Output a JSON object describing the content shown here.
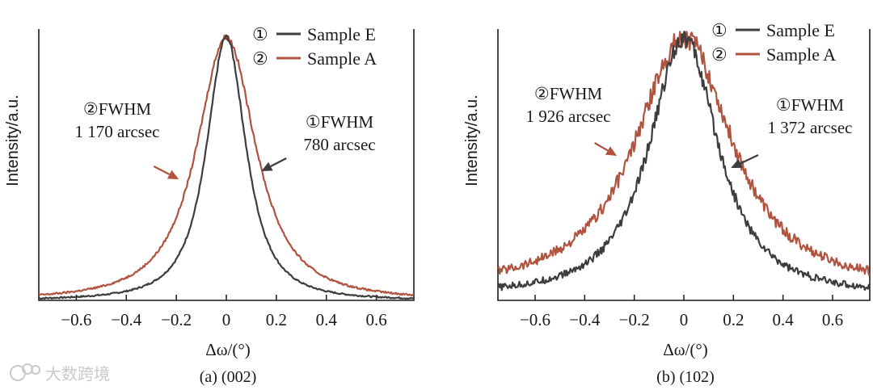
{
  "colors": {
    "sample_e": "#3d3d3f",
    "sample_a": "#b0533f",
    "axis": "#1a1a1a",
    "watermark": "#c9c9c9"
  },
  "watermark": {
    "icon": "cloud-logo-icon",
    "text": "大数跨境"
  },
  "chart_data": [
    {
      "type": "line",
      "caption": "(a) (002)",
      "xlabel": "Δω/(°)",
      "ylabel": "Intensity/a.u.",
      "xlim": [
        -0.75,
        0.75
      ],
      "ylim": [
        0,
        1.03
      ],
      "xticks": [
        -0.6,
        -0.4,
        -0.2,
        0,
        0.2,
        0.4,
        0.6
      ],
      "xtick_labels": [
        "−0.6",
        "−0.4",
        "−0.2",
        "0",
        "0.2",
        "0.4",
        "0.6"
      ],
      "legend": [
        {
          "marker": "①",
          "label": "Sample E",
          "series": 0
        },
        {
          "marker": "②",
          "label": "Sample A",
          "series": 1
        }
      ],
      "legend_position": "top-right",
      "series": [
        {
          "name": "Sample E",
          "peak": 0.0,
          "fwhm_deg": 0.217,
          "background": 0.0,
          "noise": 0.012
        },
        {
          "name": "Sample A",
          "peak": 0.0,
          "fwhm_deg": 0.325,
          "background": 0.0,
          "noise": 0.014
        }
      ],
      "annotations": [
        {
          "lines": [
            "②FWHM",
            "1 170 arcsec"
          ],
          "series": 1,
          "arrow_from_x": -0.29,
          "arrow_to_x": -0.19
        },
        {
          "lines": [
            "①FWHM",
            "780 arcsec"
          ],
          "series": 0,
          "arrow_from_x": 0.24,
          "arrow_to_x": 0.14
        }
      ]
    },
    {
      "type": "line",
      "caption": "(b) (102)",
      "xlabel": "Δω/(°)",
      "ylabel": "Intensity/a.u.",
      "xlim": [
        -0.75,
        0.75
      ],
      "ylim": [
        0,
        1.03
      ],
      "xticks": [
        -0.6,
        -0.4,
        -0.2,
        0,
        0.2,
        0.4,
        0.6
      ],
      "xtick_labels": [
        "−0.6",
        "−0.4",
        "−0.2",
        "0",
        "0.2",
        "0.4",
        "0.6"
      ],
      "legend": [
        {
          "marker": "①",
          "label": "Sample E",
          "series": 0
        },
        {
          "marker": "②",
          "label": "Sample A",
          "series": 1
        }
      ],
      "legend_position": "top-right",
      "series": [
        {
          "name": "Sample E",
          "peak": 0.0,
          "fwhm_deg": 0.381,
          "background": 0.02,
          "noise": 0.05
        },
        {
          "name": "Sample A",
          "peak": 0.0,
          "fwhm_deg": 0.535,
          "background": 0.05,
          "noise": 0.06
        }
      ],
      "annotations": [
        {
          "lines": [
            "②FWHM",
            "1 926 arcsec"
          ],
          "series": 1,
          "arrow_from_x": -0.36,
          "arrow_to_x": -0.27
        },
        {
          "lines": [
            "①FWHM",
            "1 372 arcsec"
          ],
          "series": 0,
          "arrow_from_x": 0.3,
          "arrow_to_x": 0.19
        }
      ]
    }
  ]
}
